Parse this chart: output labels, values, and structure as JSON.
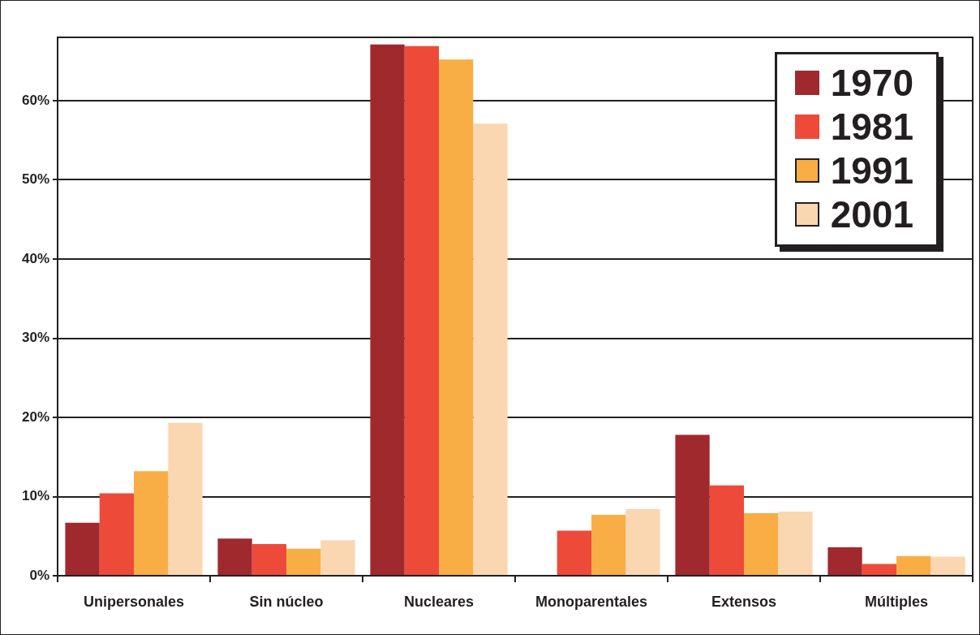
{
  "chart_data": {
    "type": "bar",
    "categories": [
      "Unipersonales",
      "Sin núcleo",
      "Nucleares",
      "Monoparentales",
      "Extensos",
      "Múltiples"
    ],
    "series": [
      {
        "name": "1970",
        "color": "#a0292e",
        "values": [
          6.7,
          4.7,
          67.1,
          0,
          17.8,
          3.6
        ]
      },
      {
        "name": "1981",
        "color": "#ee4a3a",
        "values": [
          10.4,
          4.0,
          66.9,
          5.7,
          11.4,
          1.5
        ]
      },
      {
        "name": "1991",
        "color": "#f8ae45",
        "values": [
          13.2,
          3.4,
          65.2,
          7.7,
          7.9,
          2.5
        ]
      },
      {
        "name": "2001",
        "color": "#fad7b0",
        "values": [
          19.3,
          4.5,
          57.1,
          8.4,
          8.1,
          2.4
        ]
      }
    ],
    "ylim": [
      0,
      68
    ],
    "yticks": [
      {
        "value": 0,
        "label": "0%"
      },
      {
        "value": 10,
        "label": "10%"
      },
      {
        "value": 20,
        "label": "20%"
      },
      {
        "value": 30,
        "label": "30%"
      },
      {
        "value": 40,
        "label": "40%"
      },
      {
        "value": 50,
        "label": "50%"
      },
      {
        "value": 60,
        "label": "60%"
      }
    ],
    "grid": "y",
    "legend": "top right"
  }
}
